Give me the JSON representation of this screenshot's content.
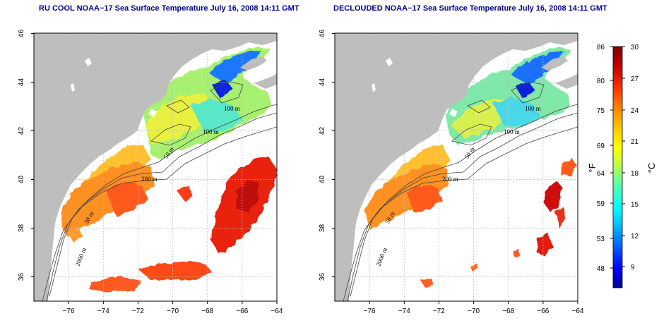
{
  "panels": [
    {
      "title": "RU COOL NOAA−17 Sea Surface Temperature July 16, 2008 14:11 GMT",
      "contour_labels": [
        "100 m",
        "100 m",
        "50 m",
        "200 m",
        "50 m",
        "2000 m"
      ]
    },
    {
      "title": "DECLOUDED NOAA−17 Sea Surface Temperature July 16, 2008 14:11 GMT",
      "contour_labels": [
        "100 m",
        "100 m",
        "50 m",
        "200 m",
        "50 m",
        "2000 m"
      ]
    }
  ],
  "axes": {
    "lon_ticks": [
      "−76",
      "−74",
      "−72",
      "−70",
      "−68",
      "−66",
      "−64"
    ],
    "lat_ticks": [
      "36",
      "38",
      "40",
      "42",
      "44",
      "46"
    ]
  },
  "colorbar": {
    "fahrenheit_labels": [
      "86",
      "80",
      "75",
      "69",
      "64",
      "59",
      "53",
      "48"
    ],
    "celsius_labels": [
      "30",
      "27",
      "24",
      "21",
      "18",
      "15",
      "12",
      "9"
    ],
    "unit_f": "°F",
    "unit_c": "°C",
    "range_c": [
      6,
      30
    ],
    "colors": [
      "#00009a",
      "#0000ff",
      "#0060ff",
      "#00b4ff",
      "#00ffff",
      "#50ffb0",
      "#b0ff50",
      "#ffff00",
      "#ffc000",
      "#ff8000",
      "#ff3000",
      "#c00000",
      "#800000"
    ]
  },
  "colors": {
    "land": "#bebebe",
    "title": "#00008b",
    "grid": "#bbbbbb"
  }
}
